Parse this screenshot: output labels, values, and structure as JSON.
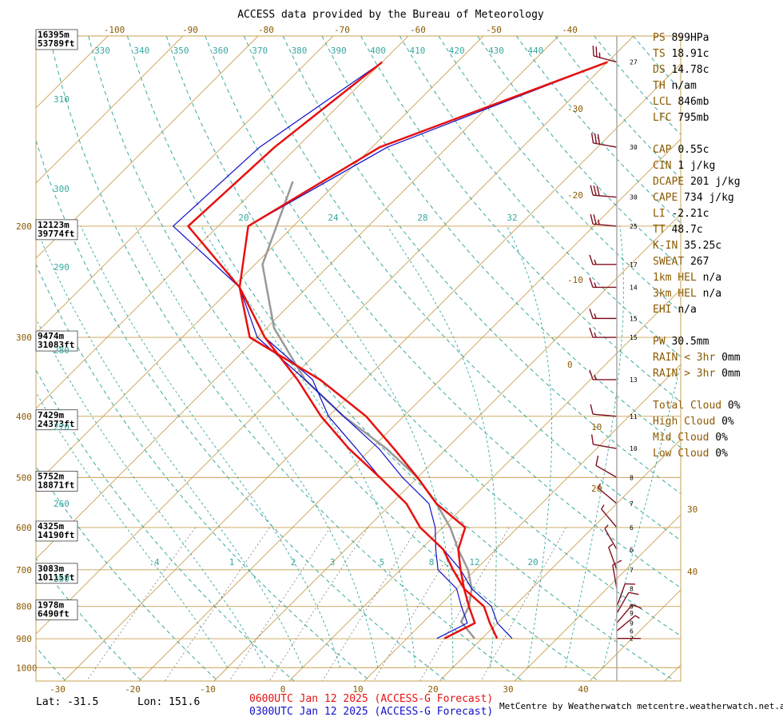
{
  "header": {
    "title": "ACCESS data provided by the Bureau of Meteorology"
  },
  "footer": {
    "lat": "Lat: -31.5",
    "lon": "Lon: 151.6",
    "run_red": "0600UTC Jan 12 2025 (ACCESS-G Forecast)",
    "run_blue": "0300UTC Jan 12 2025 (ACCESS-G Forecast)",
    "credit": "MetCentre by Weatherwatch metcentre.weatherwatch.net.au"
  },
  "colors": {
    "frame": "#c8a050",
    "isotherm": "#c8a050",
    "dry_adiabat": "#3aa8a0",
    "moist_adiabat": "#3aa8a0",
    "mixing_ratio": "#000000",
    "temp_red": "#e81010",
    "temp_blue": "#1010c8",
    "parcel": "#999999",
    "wind_barb": "#801020",
    "index_key": "#8b5a00"
  },
  "chart_data": {
    "type": "line",
    "title": "ACCESS data provided by the Bureau of Meteorology",
    "x_axis": {
      "bottom_ticks": [
        "-30",
        "-20",
        "-10",
        "0",
        "10",
        "20",
        "30",
        "40"
      ],
      "top_ticks": [
        "-100",
        "-90",
        "-80",
        "-70",
        "-60",
        "-50",
        "-40"
      ]
    },
    "right_temp_ticks": [
      "-30",
      "-20",
      "-10",
      "0",
      "10",
      "20",
      "30",
      "40"
    ],
    "pressure_ticks": [
      "200",
      "300",
      "400",
      "500",
      "600",
      "700",
      "800",
      "900",
      "1000"
    ],
    "height_labels": [
      {
        "m": "16395m",
        "ft": "53789ft"
      },
      {
        "m": "12123m",
        "ft": "39774ft"
      },
      {
        "m": "9474m",
        "ft": "31083ft"
      },
      {
        "m": "7429m",
        "ft": "24373ft"
      },
      {
        "m": "5752m",
        "ft": "18871ft"
      },
      {
        "m": "4325m",
        "ft": "14190ft"
      },
      {
        "m": "3083m",
        "ft": "10115ft"
      },
      {
        "m": "1978m",
        "ft": "6490ft"
      }
    ],
    "theta_top_labels": [
      "330",
      "340",
      "350",
      "360",
      "370",
      "380",
      "390",
      "400",
      "410",
      "420",
      "430",
      "440"
    ],
    "theta_left_labels": [
      "310",
      "300",
      "290",
      "280",
      "270",
      "260",
      "250"
    ],
    "mixing_ratio_labels_upper": [
      "20",
      "24",
      "28",
      "32"
    ],
    "mixing_ratio_labels_lower": [
      ".4",
      "1",
      "2",
      "3",
      "5",
      "8",
      "12",
      "20"
    ],
    "series": [
      {
        "name": "0600UTC Jan 12 2025 (ACCESS-G Forecast)",
        "color": "#e81010",
        "temperature": [
          [
            -40,
            110
          ],
          [
            -59,
            150
          ],
          [
            -66,
            200
          ],
          [
            -59,
            250
          ],
          [
            -49,
            300
          ],
          [
            -39,
            350
          ],
          [
            -31,
            400
          ],
          [
            -23,
            450
          ],
          [
            -15,
            500
          ],
          [
            -8,
            550
          ],
          [
            -3,
            600
          ],
          [
            3,
            650
          ],
          [
            7,
            700
          ],
          [
            11,
            750
          ],
          [
            16,
            800
          ],
          [
            19,
            850
          ],
          [
            22,
            899
          ]
        ],
        "dewpoint": [
          [
            -70,
            110
          ],
          [
            -73,
            150
          ],
          [
            -74,
            200
          ],
          [
            -59,
            250
          ],
          [
            -51,
            300
          ],
          [
            -36,
            350
          ],
          [
            -25,
            400
          ],
          [
            -17,
            450
          ],
          [
            -10,
            500
          ],
          [
            -4,
            550
          ],
          [
            3,
            600
          ],
          [
            5,
            650
          ],
          [
            8,
            700
          ],
          [
            11,
            750
          ],
          [
            14,
            800
          ],
          [
            17,
            850
          ],
          [
            15,
            899
          ]
        ]
      },
      {
        "name": "0300UTC Jan 12 2025 (ACCESS-G Forecast)",
        "color": "#1010c8",
        "temperature": [
          [
            -40,
            110
          ],
          [
            -58,
            150
          ],
          [
            -66,
            200
          ],
          [
            -59,
            250
          ],
          [
            -49,
            300
          ],
          [
            -37,
            350
          ],
          [
            -30,
            400
          ],
          [
            -22,
            450
          ],
          [
            -15,
            500
          ],
          [
            -8,
            550
          ],
          [
            -3,
            600
          ],
          [
            3,
            650
          ],
          [
            8,
            700
          ],
          [
            12,
            750
          ],
          [
            17,
            800
          ],
          [
            20,
            850
          ],
          [
            24,
            899
          ]
        ],
        "dewpoint": [
          [
            -70,
            110
          ],
          [
            -75,
            150
          ],
          [
            -76,
            200
          ],
          [
            -59,
            250
          ],
          [
            -50,
            300
          ],
          [
            -38,
            350
          ],
          [
            -28,
            400
          ],
          [
            -19,
            450
          ],
          [
            -12,
            500
          ],
          [
            -5,
            550
          ],
          [
            -1,
            600
          ],
          [
            2,
            650
          ],
          [
            5,
            700
          ],
          [
            10,
            750
          ],
          [
            13,
            800
          ],
          [
            16,
            850
          ],
          [
            14,
            899
          ]
        ]
      }
    ],
    "parcel_path": [
      [
        -66,
        170
      ],
      [
        -59,
        230
      ],
      [
        -49,
        290
      ],
      [
        -38,
        350
      ],
      [
        -28,
        400
      ],
      [
        -18,
        450
      ],
      [
        -10,
        500
      ],
      [
        -4,
        550
      ],
      [
        1,
        600
      ],
      [
        5,
        650
      ],
      [
        9,
        700
      ],
      [
        12,
        750
      ],
      [
        14,
        800
      ],
      [
        15,
        846
      ],
      [
        19,
        899
      ]
    ],
    "wind_levels": [
      {
        "p": 110,
        "spd": 27,
        "dir": 285
      },
      {
        "p": 150,
        "spd": 30,
        "dir": 280
      },
      {
        "p": 180,
        "spd": 30,
        "dir": 275
      },
      {
        "p": 200,
        "spd": 25,
        "dir": 275
      },
      {
        "p": 230,
        "spd": 17,
        "dir": 270
      },
      {
        "p": 250,
        "spd": 14,
        "dir": 270
      },
      {
        "p": 280,
        "spd": 15,
        "dir": 270
      },
      {
        "p": 300,
        "spd": 15,
        "dir": 270
      },
      {
        "p": 350,
        "spd": 13,
        "dir": 270
      },
      {
        "p": 400,
        "spd": 11,
        "dir": 275
      },
      {
        "p": 450,
        "spd": 10,
        "dir": 280
      },
      {
        "p": 500,
        "spd": 8,
        "dir": 300
      },
      {
        "p": 550,
        "spd": 7,
        "dir": 310
      },
      {
        "p": 600,
        "spd": 6,
        "dir": 320
      },
      {
        "p": 650,
        "spd": 6,
        "dir": 330
      },
      {
        "p": 700,
        "spd": 7,
        "dir": 340
      },
      {
        "p": 750,
        "spd": 8,
        "dir": 350
      },
      {
        "p": 800,
        "spd": 9,
        "dir": 20
      },
      {
        "p": 820,
        "spd": 9,
        "dir": 30
      },
      {
        "p": 850,
        "spd": 9,
        "dir": 40
      },
      {
        "p": 875,
        "spd": 6,
        "dir": 50
      },
      {
        "p": 899,
        "spd": 2,
        "dir": 90
      }
    ]
  },
  "indices": [
    {
      "k": "PS",
      "v": "899HPa"
    },
    {
      "k": "TS",
      "v": "18.91c"
    },
    {
      "k": "DS",
      "v": "14.78c"
    },
    {
      "k": "TH",
      "v": "n/am"
    },
    {
      "k": "LCL",
      "v": "846mb"
    },
    {
      "k": "LFC",
      "v": "795mb"
    },
    {
      "k": "",
      "v": ""
    },
    {
      "k": "CAP",
      "v": "0.55c"
    },
    {
      "k": "CIN",
      "v": "1 j/kg"
    },
    {
      "k": "DCAPE",
      "v": "201 j/kg"
    },
    {
      "k": "CAPE",
      "v": "734 j/kg"
    },
    {
      "k": "LI",
      "v": "-2.21c"
    },
    {
      "k": "TT",
      "v": "48.7c"
    },
    {
      "k": "K-IN",
      "v": "35.25c"
    },
    {
      "k": "SWEAT",
      "v": "267"
    },
    {
      "k": "1km HEL",
      "v": "n/a"
    },
    {
      "k": "3km HEL",
      "v": "n/a"
    },
    {
      "k": "EHI",
      "v": "n/a"
    },
    {
      "k": "",
      "v": ""
    },
    {
      "k": "PW",
      "v": "30.5mm"
    },
    {
      "k": "RAIN < 3hr",
      "v": "0mm"
    },
    {
      "k": "RAIN > 3hr",
      "v": "0mm"
    },
    {
      "k": "",
      "v": ""
    },
    {
      "k": "Total Cloud",
      "v": "0%"
    },
    {
      "k": "High Cloud",
      "v": "0%"
    },
    {
      "k": "Mid Cloud",
      "v": "0%"
    },
    {
      "k": "Low Cloud",
      "v": "0%"
    }
  ]
}
